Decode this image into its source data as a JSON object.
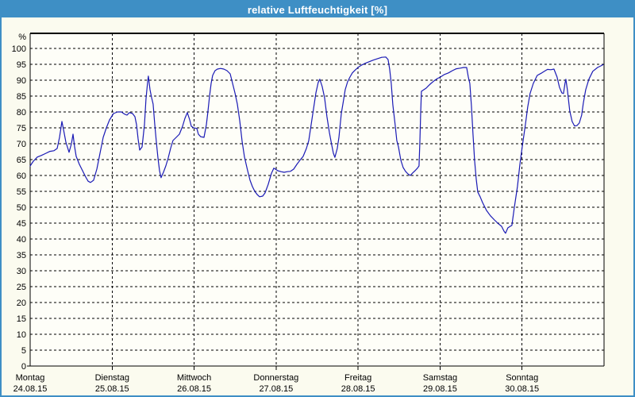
{
  "window": {
    "title": "relative Luftfeuchtigkeit [%]"
  },
  "colors": {
    "titlebar": "#3E8FC5",
    "border": "#3E8FC5",
    "title_text": "#FFFFFF",
    "background": "#FBFBEF",
    "plot_background": "#FEFEF8",
    "grid": "#000000",
    "text": "#000000",
    "series_line": "#1A1AB5"
  },
  "chart_data": {
    "type": "line",
    "title": "relative Luftfeuchtigkeit [%]",
    "y_unit": "%",
    "ylim": [
      0,
      100
    ],
    "yticks": [
      0,
      5,
      10,
      15,
      20,
      25,
      30,
      35,
      40,
      45,
      50,
      55,
      60,
      65,
      70,
      75,
      80,
      85,
      90,
      95,
      100
    ],
    "grid_style": "dashed",
    "legend": "none",
    "x_span_days": 7,
    "x_days": [
      {
        "name": "Montag",
        "date": "24.08.15"
      },
      {
        "name": "Dienstag",
        "date": "25.08.15"
      },
      {
        "name": "Mittwoch",
        "date": "26.08.15"
      },
      {
        "name": "Donnerstag",
        "date": "27.08.15"
      },
      {
        "name": "Freitag",
        "date": "28.08.15"
      },
      {
        "name": "Samstag",
        "date": "29.08.15"
      },
      {
        "name": "Sonntag",
        "date": "30.08.15"
      }
    ],
    "series": [
      {
        "name": "relative Luftfeuchtigkeit",
        "color": "#1A1AB5",
        "x_unit": "days_since_montag_0000",
        "points": [
          [
            0.0,
            63.0
          ],
          [
            0.039,
            64.5
          ],
          [
            0.087,
            65.8
          ],
          [
            0.136,
            66.3
          ],
          [
            0.194,
            67.0
          ],
          [
            0.242,
            67.6
          ],
          [
            0.29,
            67.8
          ],
          [
            0.329,
            68.5
          ],
          [
            0.358,
            72.0
          ],
          [
            0.387,
            77.0
          ],
          [
            0.407,
            74.5
          ],
          [
            0.436,
            70.5
          ],
          [
            0.474,
            67.3
          ],
          [
            0.503,
            70.0
          ],
          [
            0.523,
            73.0
          ],
          [
            0.542,
            69.0
          ],
          [
            0.562,
            66.0
          ],
          [
            0.6,
            63.5
          ],
          [
            0.639,
            61.5
          ],
          [
            0.678,
            59.5
          ],
          [
            0.707,
            58.2
          ],
          [
            0.736,
            57.8
          ],
          [
            0.774,
            58.5
          ],
          [
            0.813,
            62.0
          ],
          [
            0.852,
            67.0
          ],
          [
            0.891,
            72.0
          ],
          [
            0.929,
            75.0
          ],
          [
            0.968,
            77.5
          ],
          [
            1.017,
            79.5
          ],
          [
            1.065,
            80.0
          ],
          [
            1.113,
            80.0
          ],
          [
            1.152,
            79.3
          ],
          [
            1.181,
            79.0
          ],
          [
            1.21,
            79.8
          ],
          [
            1.249,
            79.5
          ],
          [
            1.278,
            78.5
          ],
          [
            1.297,
            76.0
          ],
          [
            1.317,
            71.5
          ],
          [
            1.336,
            68.0
          ],
          [
            1.365,
            69.0
          ],
          [
            1.394,
            76.0
          ],
          [
            1.413,
            84.0
          ],
          [
            1.433,
            89.5
          ],
          [
            1.442,
            91.3
          ],
          [
            1.462,
            87.0
          ],
          [
            1.481,
            84.5
          ],
          [
            1.5,
            82.5
          ],
          [
            1.52,
            76.0
          ],
          [
            1.539,
            70.5
          ],
          [
            1.559,
            65.5
          ],
          [
            1.578,
            61.5
          ],
          [
            1.597,
            59.3
          ],
          [
            1.626,
            61.0
          ],
          [
            1.655,
            63.0
          ],
          [
            1.684,
            65.5
          ],
          [
            1.713,
            68.5
          ],
          [
            1.742,
            71.0
          ],
          [
            1.781,
            72.0
          ],
          [
            1.82,
            73.0
          ],
          [
            1.859,
            75.5
          ],
          [
            1.888,
            78.0
          ],
          [
            1.917,
            79.8
          ],
          [
            1.946,
            77.5
          ],
          [
            1.965,
            75.5
          ],
          [
            1.994,
            75.0
          ],
          [
            2.033,
            74.8
          ],
          [
            2.052,
            73.0
          ],
          [
            2.081,
            72.2
          ],
          [
            2.12,
            72.0
          ],
          [
            2.149,
            76.0
          ],
          [
            2.168,
            80.0
          ],
          [
            2.188,
            85.0
          ],
          [
            2.207,
            89.0
          ],
          [
            2.226,
            91.5
          ],
          [
            2.255,
            93.0
          ],
          [
            2.284,
            93.5
          ],
          [
            2.323,
            93.7
          ],
          [
            2.362,
            93.5
          ],
          [
            2.401,
            93.0
          ],
          [
            2.44,
            92.0
          ],
          [
            2.469,
            89.0
          ],
          [
            2.498,
            86.0
          ],
          [
            2.527,
            82.5
          ],
          [
            2.556,
            77.3
          ],
          [
            2.585,
            70.8
          ],
          [
            2.614,
            65.8
          ],
          [
            2.652,
            61.6
          ],
          [
            2.682,
            58.5
          ],
          [
            2.711,
            56.5
          ],
          [
            2.74,
            55.0
          ],
          [
            2.769,
            54.0
          ],
          [
            2.798,
            53.3
          ],
          [
            2.836,
            53.5
          ],
          [
            2.865,
            54.5
          ],
          [
            2.904,
            57.2
          ],
          [
            2.943,
            60.7
          ],
          [
            2.972,
            62.3
          ],
          [
            3.02,
            61.5
          ],
          [
            3.059,
            61.2
          ],
          [
            3.098,
            61.0
          ],
          [
            3.137,
            61.2
          ],
          [
            3.175,
            61.3
          ],
          [
            3.214,
            62.0
          ],
          [
            3.253,
            63.5
          ],
          [
            3.291,
            64.8
          ],
          [
            3.33,
            66.0
          ],
          [
            3.369,
            68.5
          ],
          [
            3.398,
            71.0
          ],
          [
            3.427,
            76.0
          ],
          [
            3.456,
            81.0
          ],
          [
            3.485,
            86.0
          ],
          [
            3.514,
            89.3
          ],
          [
            3.533,
            90.3
          ],
          [
            3.562,
            88.0
          ],
          [
            3.591,
            84.5
          ],
          [
            3.62,
            78.5
          ],
          [
            3.65,
            73.5
          ],
          [
            3.679,
            69.5
          ],
          [
            3.698,
            67.0
          ],
          [
            3.717,
            65.7
          ],
          [
            3.746,
            68.5
          ],
          [
            3.766,
            72.0
          ],
          [
            3.795,
            79.5
          ],
          [
            3.824,
            84.0
          ],
          [
            3.843,
            87.0
          ],
          [
            3.872,
            89.5
          ],
          [
            3.901,
            91.0
          ],
          [
            3.93,
            92.3
          ],
          [
            3.969,
            93.3
          ],
          [
            4.008,
            94.2
          ],
          [
            4.046,
            94.8
          ],
          [
            4.085,
            95.3
          ],
          [
            4.133,
            95.8
          ],
          [
            4.182,
            96.3
          ],
          [
            4.24,
            96.8
          ],
          [
            4.288,
            97.2
          ],
          [
            4.337,
            97.3
          ],
          [
            4.366,
            96.5
          ],
          [
            4.385,
            93.5
          ],
          [
            4.404,
            89.0
          ],
          [
            4.424,
            82.3
          ],
          [
            4.453,
            75.8
          ],
          [
            4.472,
            71.0
          ],
          [
            4.492,
            69.0
          ],
          [
            4.521,
            64.8
          ],
          [
            4.55,
            62.5
          ],
          [
            4.579,
            61.3
          ],
          [
            4.608,
            60.5
          ],
          [
            4.637,
            60.0
          ],
          [
            4.666,
            60.8
          ],
          [
            4.695,
            61.5
          ],
          [
            4.724,
            62.3
          ],
          [
            4.743,
            63.0
          ],
          [
            4.753,
            70.0
          ],
          [
            4.763,
            79.0
          ],
          [
            4.772,
            86.5
          ],
          [
            4.801,
            87.0
          ],
          [
            4.83,
            87.5
          ],
          [
            4.86,
            88.3
          ],
          [
            4.889,
            89.0
          ],
          [
            4.927,
            89.8
          ],
          [
            4.966,
            90.5
          ],
          [
            5.005,
            91.0
          ],
          [
            5.053,
            91.8
          ],
          [
            5.102,
            92.3
          ],
          [
            5.15,
            93.0
          ],
          [
            5.198,
            93.6
          ],
          [
            5.247,
            93.8
          ],
          [
            5.286,
            94.0
          ],
          [
            5.324,
            94.0
          ],
          [
            5.344,
            91.0
          ],
          [
            5.363,
            89.0
          ],
          [
            5.382,
            82.0
          ],
          [
            5.402,
            73.0
          ],
          [
            5.421,
            64.8
          ],
          [
            5.44,
            59.0
          ],
          [
            5.46,
            54.8
          ],
          [
            5.489,
            53.3
          ],
          [
            5.518,
            51.5
          ],
          [
            5.566,
            49.0
          ],
          [
            5.615,
            47.3
          ],
          [
            5.663,
            46.0
          ],
          [
            5.711,
            44.8
          ],
          [
            5.75,
            44.0
          ],
          [
            5.779,
            42.5
          ],
          [
            5.798,
            41.8
          ],
          [
            5.827,
            43.5
          ],
          [
            5.856,
            44.0
          ],
          [
            5.876,
            44.3
          ],
          [
            5.905,
            49.8
          ],
          [
            5.944,
            56.5
          ],
          [
            5.973,
            63.3
          ],
          [
            6.002,
            69.0
          ],
          [
            6.04,
            75.8
          ],
          [
            6.069,
            81.5
          ],
          [
            6.098,
            85.8
          ],
          [
            6.137,
            89.0
          ],
          [
            6.185,
            91.5
          ],
          [
            6.234,
            92.2
          ],
          [
            6.272,
            92.8
          ],
          [
            6.311,
            93.4
          ],
          [
            6.35,
            93.3
          ],
          [
            6.389,
            93.5
          ],
          [
            6.427,
            91.0
          ],
          [
            6.456,
            87.8
          ],
          [
            6.485,
            86.0
          ],
          [
            6.505,
            85.8
          ],
          [
            6.524,
            89.0
          ],
          [
            6.534,
            90.3
          ],
          [
            6.553,
            87.0
          ],
          [
            6.582,
            80.3
          ],
          [
            6.611,
            77.0
          ],
          [
            6.64,
            75.6
          ],
          [
            6.669,
            75.7
          ],
          [
            6.698,
            76.5
          ],
          [
            6.727,
            79.0
          ],
          [
            6.747,
            82.8
          ],
          [
            6.776,
            87.0
          ],
          [
            6.815,
            90.3
          ],
          [
            6.863,
            92.8
          ],
          [
            6.921,
            94.0
          ],
          [
            6.96,
            94.5
          ],
          [
            6.989,
            94.9
          ]
        ]
      }
    ]
  }
}
